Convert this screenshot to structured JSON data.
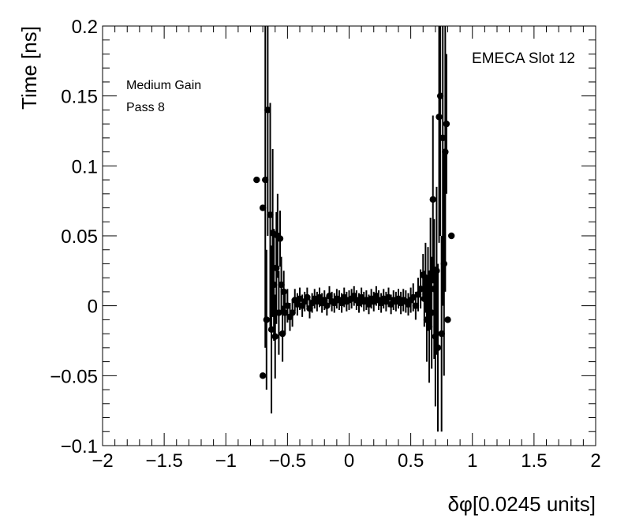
{
  "chart_data": {
    "type": "scatter",
    "xlabel": "δφ[0.0245 units]",
    "ylabel": "Time [ns]",
    "xlim": [
      -2,
      2
    ],
    "ylim": [
      -0.1,
      0.2
    ],
    "x_ticks": [
      -2,
      -1.5,
      -1,
      -0.5,
      0,
      0.5,
      1,
      1.5,
      2
    ],
    "x_tick_labels": [
      "−2",
      "−1.5",
      "−1",
      "−0.5",
      "0",
      "0.5",
      "1",
      "1.5",
      "2"
    ],
    "y_ticks": [
      -0.1,
      -0.05,
      0,
      0.05,
      0.1,
      0.15,
      0.2
    ],
    "y_tick_labels": [
      "−0.1",
      "−0.05",
      "0",
      "0.05",
      "0.1",
      "0.15",
      "0.2"
    ],
    "grid": false,
    "annotations": [
      "EMECA Slot 12",
      "Medium Gain",
      "Pass 8"
    ],
    "series": [
      {
        "points": [
          {
            "x": -0.75,
            "y": 0.09,
            "err": 0.0
          },
          {
            "x": -0.7,
            "y": 0.07,
            "err": 0.0
          },
          {
            "x": -0.7,
            "y": -0.05,
            "err": 0.0
          },
          {
            "x": -0.68,
            "y": 0.09,
            "err": 0.12
          },
          {
            "x": -0.66,
            "y": 0.14,
            "err": 0.09
          },
          {
            "x": -0.67,
            "y": -0.01,
            "err": 0.05
          },
          {
            "x": -0.64,
            "y": 0.065,
            "err": 0.08
          },
          {
            "x": -0.63,
            "y": -0.017,
            "err": 0.06
          },
          {
            "x": -0.62,
            "y": 0.052,
            "err": 0.06
          },
          {
            "x": -0.61,
            "y": 0.015,
            "err": 0.04
          },
          {
            "x": -0.6,
            "y": -0.022,
            "err": 0.03
          },
          {
            "x": -0.59,
            "y": 0.027,
            "err": 0.04
          },
          {
            "x": -0.58,
            "y": 0.05,
            "err": 0.03
          },
          {
            "x": -0.57,
            "y": -0.005,
            "err": 0.03
          },
          {
            "x": -0.56,
            "y": 0.048,
            "err": 0.02
          },
          {
            "x": -0.55,
            "y": 0.015,
            "err": 0.02
          },
          {
            "x": -0.54,
            "y": -0.02,
            "err": 0.02
          },
          {
            "x": -0.53,
            "y": 0.01,
            "err": 0.015
          },
          {
            "x": -0.52,
            "y": -0.005,
            "err": 0.015
          },
          {
            "x": -0.5,
            "y": 0.0,
            "err": 0.012
          },
          {
            "x": -0.48,
            "y": -0.008,
            "err": 0.01
          },
          {
            "x": -0.46,
            "y": -0.005,
            "err": 0.01
          },
          {
            "x": -0.44,
            "y": 0.004,
            "err": 0.008
          },
          {
            "x": -0.42,
            "y": 0.001,
            "err": 0.008
          },
          {
            "x": -0.4,
            "y": 0.005,
            "err": 0.008
          },
          {
            "x": -0.38,
            "y": 0.0,
            "err": 0.008
          },
          {
            "x": -0.36,
            "y": 0.003,
            "err": 0.007
          },
          {
            "x": -0.34,
            "y": 0.006,
            "err": 0.007
          },
          {
            "x": -0.32,
            "y": -0.002,
            "err": 0.007
          },
          {
            "x": -0.3,
            "y": 0.002,
            "err": 0.007
          },
          {
            "x": -0.28,
            "y": 0.005,
            "err": 0.007
          },
          {
            "x": -0.26,
            "y": 0.003,
            "err": 0.007
          },
          {
            "x": -0.24,
            "y": 0.006,
            "err": 0.007
          },
          {
            "x": -0.22,
            "y": 0.002,
            "err": 0.007
          },
          {
            "x": -0.2,
            "y": 0.004,
            "err": 0.007
          },
          {
            "x": -0.18,
            "y": 0.0,
            "err": 0.007
          },
          {
            "x": -0.16,
            "y": 0.007,
            "err": 0.007
          },
          {
            "x": -0.14,
            "y": 0.003,
            "err": 0.007
          },
          {
            "x": -0.12,
            "y": 0.002,
            "err": 0.007
          },
          {
            "x": -0.1,
            "y": 0.005,
            "err": 0.007
          },
          {
            "x": -0.08,
            "y": 0.004,
            "err": 0.007
          },
          {
            "x": -0.06,
            "y": 0.002,
            "err": 0.007
          },
          {
            "x": -0.04,
            "y": 0.006,
            "err": 0.007
          },
          {
            "x": -0.02,
            "y": 0.003,
            "err": 0.007
          },
          {
            "x": 0.0,
            "y": 0.004,
            "err": 0.007
          },
          {
            "x": 0.02,
            "y": 0.005,
            "err": 0.007
          },
          {
            "x": 0.04,
            "y": 0.007,
            "err": 0.007
          },
          {
            "x": 0.06,
            "y": 0.004,
            "err": 0.007
          },
          {
            "x": 0.08,
            "y": 0.002,
            "err": 0.007
          },
          {
            "x": 0.1,
            "y": 0.006,
            "err": 0.007
          },
          {
            "x": 0.12,
            "y": 0.003,
            "err": 0.007
          },
          {
            "x": 0.14,
            "y": 0.004,
            "err": 0.007
          },
          {
            "x": 0.16,
            "y": 0.001,
            "err": 0.007
          },
          {
            "x": 0.18,
            "y": 0.005,
            "err": 0.007
          },
          {
            "x": 0.2,
            "y": 0.003,
            "err": 0.007
          },
          {
            "x": 0.22,
            "y": 0.007,
            "err": 0.007
          },
          {
            "x": 0.24,
            "y": 0.004,
            "err": 0.007
          },
          {
            "x": 0.26,
            "y": 0.002,
            "err": 0.007
          },
          {
            "x": 0.28,
            "y": 0.005,
            "err": 0.007
          },
          {
            "x": 0.3,
            "y": 0.003,
            "err": 0.007
          },
          {
            "x": 0.32,
            "y": 0.006,
            "err": 0.007
          },
          {
            "x": 0.34,
            "y": 0.001,
            "err": 0.007
          },
          {
            "x": 0.36,
            "y": 0.004,
            "err": 0.007
          },
          {
            "x": 0.38,
            "y": 0.003,
            "err": 0.007
          },
          {
            "x": 0.4,
            "y": 0.005,
            "err": 0.007
          },
          {
            "x": 0.42,
            "y": 0.002,
            "err": 0.008
          },
          {
            "x": 0.44,
            "y": 0.004,
            "err": 0.008
          },
          {
            "x": 0.46,
            "y": 0.003,
            "err": 0.008
          },
          {
            "x": 0.48,
            "y": 0.001,
            "err": 0.008
          },
          {
            "x": 0.5,
            "y": 0.004,
            "err": 0.009
          },
          {
            "x": 0.52,
            "y": 0.006,
            "err": 0.01
          },
          {
            "x": 0.54,
            "y": 0.0,
            "err": 0.01
          },
          {
            "x": 0.56,
            "y": 0.008,
            "err": 0.012
          },
          {
            "x": 0.58,
            "y": 0.012,
            "err": 0.014
          },
          {
            "x": 0.6,
            "y": 0.022,
            "err": 0.015
          },
          {
            "x": 0.61,
            "y": 0.005,
            "err": 0.02
          },
          {
            "x": 0.62,
            "y": 0.02,
            "err": 0.025
          },
          {
            "x": 0.63,
            "y": -0.01,
            "err": 0.03
          },
          {
            "x": 0.64,
            "y": 0.012,
            "err": 0.03
          },
          {
            "x": 0.65,
            "y": -0.015,
            "err": 0.04
          },
          {
            "x": 0.66,
            "y": 0.023,
            "err": 0.04
          },
          {
            "x": 0.67,
            "y": -0.005,
            "err": 0.04
          },
          {
            "x": 0.68,
            "y": 0.076,
            "err": 0.06
          },
          {
            "x": 0.69,
            "y": 0.012,
            "err": 0.05
          },
          {
            "x": 0.7,
            "y": -0.022,
            "err": 0.05
          },
          {
            "x": 0.71,
            "y": 0.025,
            "err": 0.06
          },
          {
            "x": 0.72,
            "y": -0.03,
            "err": 0.06
          },
          {
            "x": 0.73,
            "y": 0.135,
            "err": 0.09
          },
          {
            "x": 0.74,
            "y": 0.15,
            "err": 0.1
          },
          {
            "x": 0.75,
            "y": -0.02,
            "err": 0.07
          },
          {
            "x": 0.76,
            "y": 0.12,
            "err": 0.12
          },
          {
            "x": 0.77,
            "y": 0.03,
            "err": 0.08
          },
          {
            "x": 0.78,
            "y": 0.11,
            "err": 0.1
          },
          {
            "x": 0.79,
            "y": 0.13,
            "err": 0.05
          },
          {
            "x": 0.8,
            "y": -0.01,
            "err": 0.0
          },
          {
            "x": 0.83,
            "y": 0.05,
            "err": 0.0
          }
        ]
      }
    ]
  }
}
